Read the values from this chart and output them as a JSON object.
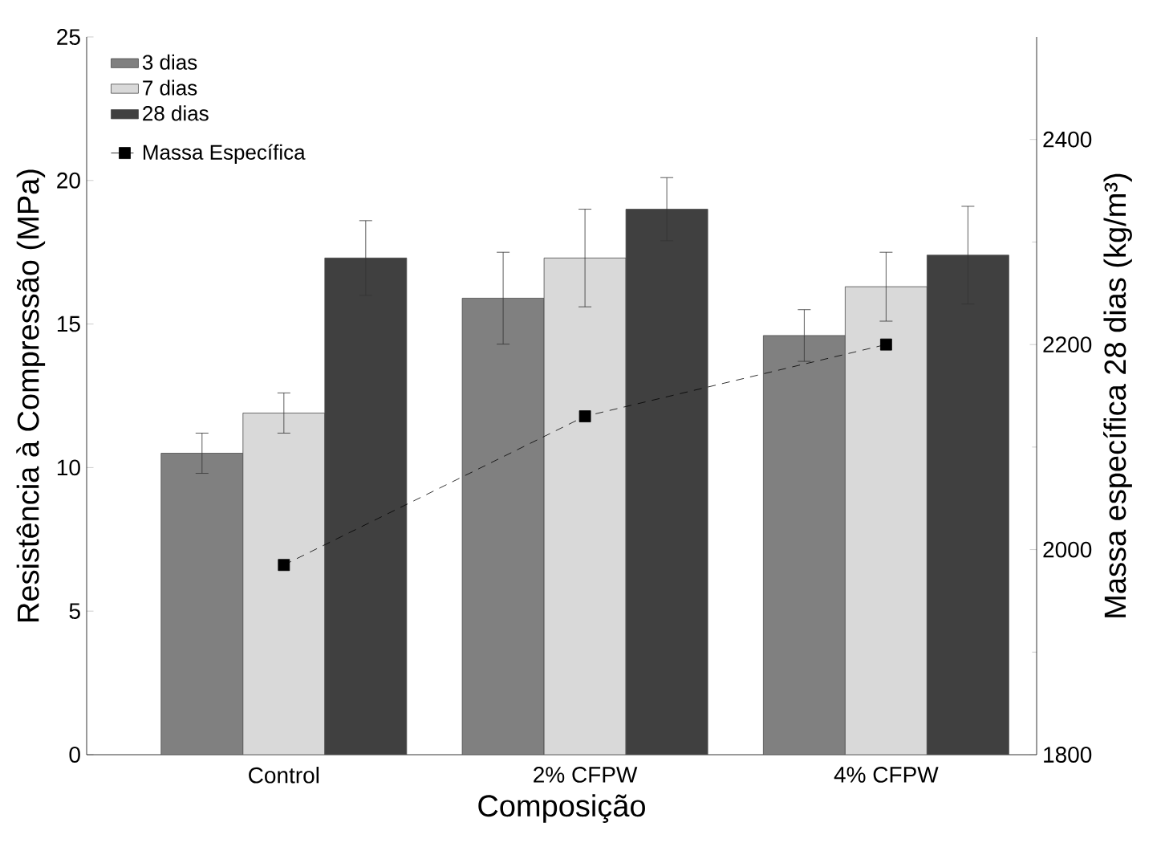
{
  "chart_data": {
    "type": "bar",
    "xlabel": "Composição",
    "ylabel": "Resistência à Compressão (MPa)",
    "y2label": "Massa específica 28 dias (kg/m³)",
    "categories": [
      "Control",
      "2% CFPW",
      "4% CFPW"
    ],
    "ylim": [
      0,
      25
    ],
    "yticks": [
      0,
      5,
      10,
      15,
      20,
      25
    ],
    "y2lim": [
      1800,
      2500
    ],
    "y2ticks": [
      1800,
      2000,
      2200,
      2400
    ],
    "legend": "top left",
    "series": [
      {
        "name": "3 dias",
        "color": "#808080",
        "values": [
          10.5,
          15.9,
          14.6
        ],
        "errors": [
          0.7,
          1.6,
          0.9
        ]
      },
      {
        "name": "7 dias",
        "color": "#d9d9d9",
        "values": [
          11.9,
          17.3,
          16.3
        ],
        "errors": [
          0.7,
          1.7,
          1.2
        ]
      },
      {
        "name": "28 dias",
        "color": "#404040",
        "values": [
          17.3,
          19.0,
          17.4
        ],
        "errors": [
          1.3,
          1.1,
          1.7
        ]
      },
      {
        "name": "Massa Específica",
        "type": "line",
        "axis": "y2",
        "color": "#000000",
        "marker": "square",
        "line_style": "dashed",
        "values": [
          1985,
          2130,
          2200
        ]
      }
    ]
  }
}
